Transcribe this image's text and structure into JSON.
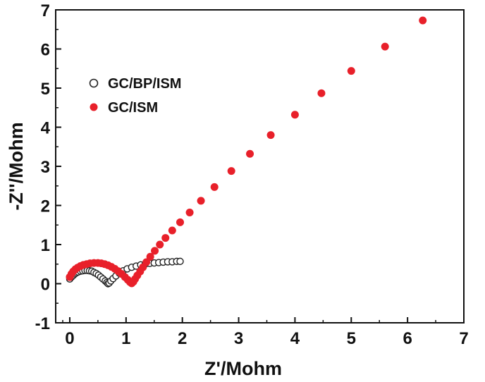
{
  "chart_data": {
    "type": "scatter",
    "xlabel": "Z'/Mohm",
    "ylabel": "-Z''/Mohm",
    "xlim": [
      -0.25,
      7
    ],
    "ylim": [
      -1,
      7
    ],
    "xticks": [
      0,
      1,
      2,
      3,
      4,
      5,
      6,
      7
    ],
    "yticks": [
      -1,
      0,
      1,
      2,
      3,
      4,
      5,
      6,
      7
    ],
    "grid": false,
    "legend_position": "top-left",
    "series": [
      {
        "name": "GC/BP/ISM",
        "marker": "open-circle",
        "color": "#222222",
        "points": [
          [
            0.0,
            0.12
          ],
          [
            0.03,
            0.17
          ],
          [
            0.06,
            0.21
          ],
          [
            0.09,
            0.25
          ],
          [
            0.12,
            0.28
          ],
          [
            0.15,
            0.3
          ],
          [
            0.19,
            0.32
          ],
          [
            0.23,
            0.33
          ],
          [
            0.27,
            0.34
          ],
          [
            0.31,
            0.34
          ],
          [
            0.35,
            0.33
          ],
          [
            0.39,
            0.32
          ],
          [
            0.43,
            0.29
          ],
          [
            0.47,
            0.26
          ],
          [
            0.51,
            0.22
          ],
          [
            0.55,
            0.17
          ],
          [
            0.59,
            0.12
          ],
          [
            0.63,
            0.07
          ],
          [
            0.66,
            0.03
          ],
          [
            0.68,
            0.0
          ],
          [
            0.7,
            0.02
          ],
          [
            0.73,
            0.07
          ],
          [
            0.77,
            0.13
          ],
          [
            0.82,
            0.2
          ],
          [
            0.88,
            0.27
          ],
          [
            0.95,
            0.33
          ],
          [
            1.02,
            0.38
          ],
          [
            1.1,
            0.42
          ],
          [
            1.18,
            0.45
          ],
          [
            1.26,
            0.48
          ],
          [
            1.34,
            0.5
          ],
          [
            1.42,
            0.52
          ],
          [
            1.5,
            0.53
          ],
          [
            1.58,
            0.54
          ],
          [
            1.66,
            0.55
          ],
          [
            1.74,
            0.56
          ],
          [
            1.82,
            0.56
          ],
          [
            1.9,
            0.57
          ],
          [
            1.96,
            0.57
          ]
        ]
      },
      {
        "name": "GC/ISM",
        "marker": "filled-circle",
        "color": "#e8202a",
        "points": [
          [
            0.0,
            0.17
          ],
          [
            0.03,
            0.25
          ],
          [
            0.06,
            0.31
          ],
          [
            0.1,
            0.37
          ],
          [
            0.14,
            0.41
          ],
          [
            0.19,
            0.45
          ],
          [
            0.24,
            0.48
          ],
          [
            0.3,
            0.5
          ],
          [
            0.36,
            0.52
          ],
          [
            0.43,
            0.53
          ],
          [
            0.5,
            0.53
          ],
          [
            0.56,
            0.52
          ],
          [
            0.62,
            0.5
          ],
          [
            0.68,
            0.47
          ],
          [
            0.74,
            0.43
          ],
          [
            0.8,
            0.38
          ],
          [
            0.86,
            0.32
          ],
          [
            0.92,
            0.25
          ],
          [
            0.98,
            0.17
          ],
          [
            1.03,
            0.1
          ],
          [
            1.07,
            0.04
          ],
          [
            1.1,
            0.01
          ],
          [
            1.13,
            0.05
          ],
          [
            1.16,
            0.12
          ],
          [
            1.2,
            0.21
          ],
          [
            1.25,
            0.31
          ],
          [
            1.3,
            0.42
          ],
          [
            1.36,
            0.55
          ],
          [
            1.43,
            0.69
          ],
          [
            1.51,
            0.84
          ],
          [
            1.6,
            1.0
          ],
          [
            1.7,
            1.17
          ],
          [
            1.82,
            1.36
          ],
          [
            1.96,
            1.57
          ],
          [
            2.13,
            1.82
          ],
          [
            2.33,
            2.12
          ],
          [
            2.57,
            2.47
          ],
          [
            2.87,
            2.88
          ],
          [
            3.2,
            3.32
          ],
          [
            3.57,
            3.8
          ],
          [
            4.0,
            4.32
          ],
          [
            4.47,
            4.87
          ],
          [
            5.0,
            5.44
          ],
          [
            5.6,
            6.06
          ],
          [
            6.27,
            6.73
          ]
        ]
      }
    ]
  }
}
